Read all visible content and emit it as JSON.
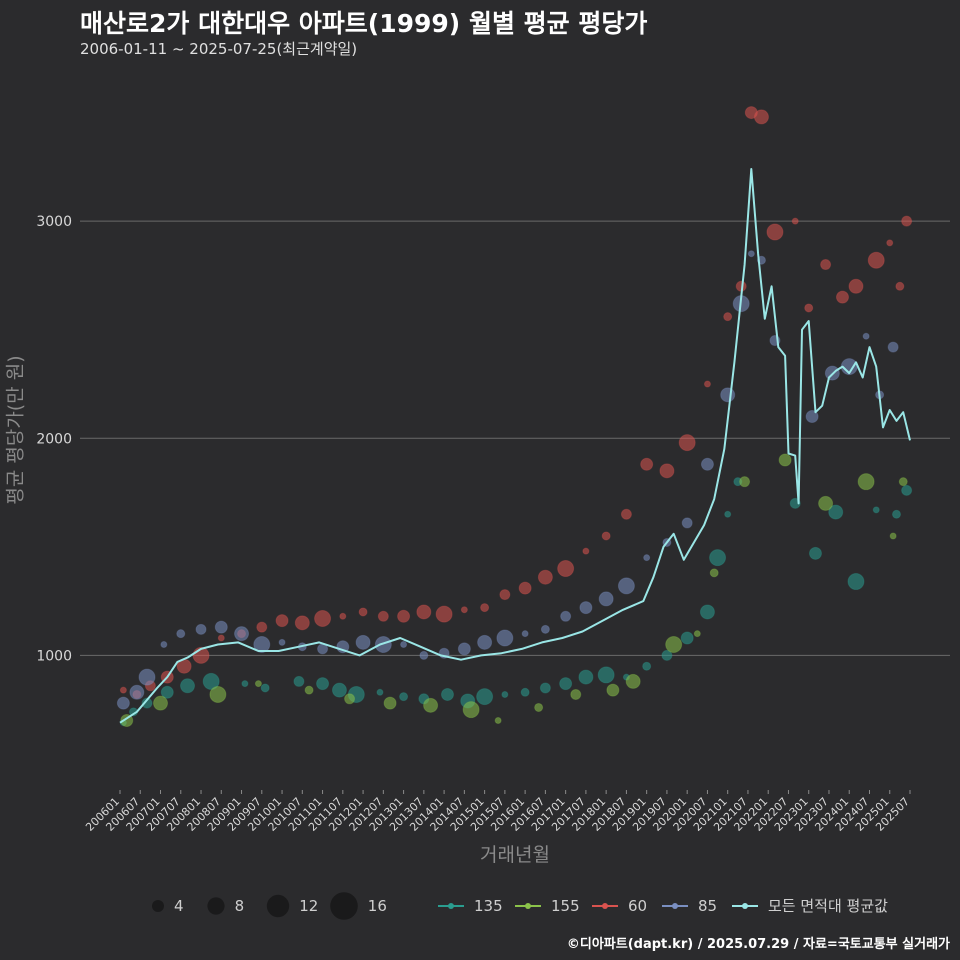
{
  "chart_data": {
    "type": "scatter",
    "title": "매산로2가 대한대우 아파트(1999) 월별 평균 평당가",
    "subtitle": "2006-01-11 ~ 2025-07-25(최근계약일)",
    "xlabel": "거래년월",
    "ylabel": "평균 평당가(만 원)",
    "caption": "©디아파트(dapt.kr) / 2025.07.29 / 자료=국토교통부 실거래가",
    "ylim": [
      380,
      3650
    ],
    "yticks": [
      1000,
      2000,
      3000
    ],
    "grid": true,
    "xticks": [
      "200601",
      "200607",
      "200701",
      "200707",
      "200801",
      "200807",
      "200901",
      "200907",
      "201001",
      "201007",
      "201101",
      "201107",
      "201201",
      "201207",
      "201301",
      "201307",
      "201401",
      "201407",
      "201501",
      "201507",
      "201601",
      "201607",
      "201701",
      "201707",
      "201801",
      "201807",
      "201901",
      "201907",
      "202001",
      "202007",
      "202101",
      "202107",
      "202201",
      "202207",
      "202301",
      "202307",
      "202401",
      "202407",
      "202501",
      "202507"
    ],
    "size_legend": [
      4,
      8,
      12,
      16
    ],
    "series": [
      {
        "name": "135",
        "color": "#2a9d8f",
        "points": [
          [
            "2006-02",
            690
          ],
          [
            "2006-05",
            740
          ],
          [
            "2006-09",
            780
          ],
          [
            "2007-03",
            830
          ],
          [
            "2007-09",
            860
          ],
          [
            "2008-04",
            880
          ],
          [
            "2009-02",
            870
          ],
          [
            "2009-08",
            850
          ],
          [
            "2010-06",
            880
          ],
          [
            "2011-01",
            870
          ],
          [
            "2011-06",
            840
          ],
          [
            "2011-11",
            820
          ],
          [
            "2012-06",
            830
          ],
          [
            "2013-01",
            810
          ],
          [
            "2013-07",
            800
          ],
          [
            "2014-02",
            820
          ],
          [
            "2014-08",
            790
          ],
          [
            "2015-01",
            810
          ],
          [
            "2015-07",
            820
          ],
          [
            "2016-01",
            830
          ],
          [
            "2016-07",
            850
          ],
          [
            "2017-01",
            870
          ],
          [
            "2017-07",
            900
          ],
          [
            "2018-01",
            910
          ],
          [
            "2018-07",
            900
          ],
          [
            "2019-01",
            950
          ],
          [
            "2019-07",
            1000
          ],
          [
            "2020-01",
            1080
          ],
          [
            "2020-07",
            1200
          ],
          [
            "2020-10",
            1450
          ],
          [
            "2021-01",
            1650
          ],
          [
            "2021-04",
            1800
          ],
          [
            "2022-09",
            1700
          ],
          [
            "2023-03",
            1470
          ],
          [
            "2023-09",
            1660
          ],
          [
            "2024-03",
            1340
          ],
          [
            "2024-09",
            1670
          ],
          [
            "2025-03",
            1650
          ],
          [
            "2025-06",
            1760
          ]
        ]
      },
      {
        "name": "155",
        "color": "#8bc34a",
        "points": [
          [
            "2006-03",
            700
          ],
          [
            "2007-01",
            780
          ],
          [
            "2008-06",
            820
          ],
          [
            "2009-06",
            870
          ],
          [
            "2010-09",
            840
          ],
          [
            "2011-09",
            800
          ],
          [
            "2012-09",
            780
          ],
          [
            "2013-09",
            770
          ],
          [
            "2014-09",
            750
          ],
          [
            "2015-05",
            700
          ],
          [
            "2016-05",
            760
          ],
          [
            "2017-04",
            820
          ],
          [
            "2018-03",
            840
          ],
          [
            "2018-09",
            880
          ],
          [
            "2019-09",
            1050
          ],
          [
            "2020-04",
            1100
          ],
          [
            "2020-09",
            1380
          ],
          [
            "2021-06",
            1800
          ],
          [
            "2022-06",
            1900
          ],
          [
            "2023-06",
            1700
          ],
          [
            "2024-06",
            1800
          ],
          [
            "2025-02",
            1550
          ],
          [
            "2025-05",
            1800
          ]
        ]
      },
      {
        "name": "60",
        "color": "#d9534f",
        "points": [
          [
            "2006-02",
            840
          ],
          [
            "2006-06",
            820
          ],
          [
            "2006-10",
            860
          ],
          [
            "2007-03",
            900
          ],
          [
            "2007-08",
            950
          ],
          [
            "2008-01",
            1000
          ],
          [
            "2008-07",
            1080
          ],
          [
            "2009-01",
            1100
          ],
          [
            "2009-07",
            1130
          ],
          [
            "2010-01",
            1160
          ],
          [
            "2010-07",
            1150
          ],
          [
            "2011-01",
            1170
          ],
          [
            "2011-07",
            1180
          ],
          [
            "2012-01",
            1200
          ],
          [
            "2012-07",
            1180
          ],
          [
            "2013-01",
            1180
          ],
          [
            "2013-07",
            1200
          ],
          [
            "2014-01",
            1190
          ],
          [
            "2014-07",
            1210
          ],
          [
            "2015-01",
            1220
          ],
          [
            "2015-07",
            1280
          ],
          [
            "2016-01",
            1310
          ],
          [
            "2016-07",
            1360
          ],
          [
            "2017-01",
            1400
          ],
          [
            "2017-07",
            1480
          ],
          [
            "2018-01",
            1550
          ],
          [
            "2018-07",
            1650
          ],
          [
            "2019-01",
            1880
          ],
          [
            "2019-07",
            1850
          ],
          [
            "2020-01",
            1980
          ],
          [
            "2020-07",
            2250
          ],
          [
            "2021-01",
            2560
          ],
          [
            "2021-05",
            2700
          ],
          [
            "2021-08",
            3500
          ],
          [
            "2021-11",
            3480
          ],
          [
            "2022-03",
            2950
          ],
          [
            "2022-09",
            3000
          ],
          [
            "2023-01",
            2600
          ],
          [
            "2023-06",
            2800
          ],
          [
            "2023-11",
            2650
          ],
          [
            "2024-03",
            2700
          ],
          [
            "2024-09",
            2820
          ],
          [
            "2025-01",
            2900
          ],
          [
            "2025-04",
            2700
          ],
          [
            "2025-06",
            3000
          ]
        ]
      },
      {
        "name": "85",
        "color": "#7a8fc1",
        "points": [
          [
            "2006-02",
            780
          ],
          [
            "2006-06",
            830
          ],
          [
            "2006-09",
            900
          ],
          [
            "2007-02",
            1050
          ],
          [
            "2007-07",
            1100
          ],
          [
            "2008-01",
            1120
          ],
          [
            "2008-07",
            1130
          ],
          [
            "2009-01",
            1100
          ],
          [
            "2009-07",
            1050
          ],
          [
            "2010-01",
            1060
          ],
          [
            "2010-07",
            1040
          ],
          [
            "2011-01",
            1030
          ],
          [
            "2011-07",
            1040
          ],
          [
            "2012-01",
            1060
          ],
          [
            "2012-07",
            1050
          ],
          [
            "2013-01",
            1050
          ],
          [
            "2013-07",
            1000
          ],
          [
            "2014-01",
            1010
          ],
          [
            "2014-07",
            1030
          ],
          [
            "2015-01",
            1060
          ],
          [
            "2015-07",
            1080
          ],
          [
            "2016-01",
            1100
          ],
          [
            "2016-07",
            1120
          ],
          [
            "2017-01",
            1180
          ],
          [
            "2017-07",
            1220
          ],
          [
            "2018-01",
            1260
          ],
          [
            "2018-07",
            1320
          ],
          [
            "2019-01",
            1450
          ],
          [
            "2019-07",
            1520
          ],
          [
            "2020-01",
            1610
          ],
          [
            "2020-07",
            1880
          ],
          [
            "2021-01",
            2200
          ],
          [
            "2021-05",
            2620
          ],
          [
            "2021-08",
            2850
          ],
          [
            "2021-11",
            2820
          ],
          [
            "2022-03",
            2450
          ],
          [
            "2023-02",
            2100
          ],
          [
            "2023-08",
            2300
          ],
          [
            "2024-01",
            2330
          ],
          [
            "2024-06",
            2470
          ],
          [
            "2024-10",
            2200
          ],
          [
            "2025-02",
            2420
          ]
        ]
      }
    ],
    "average": {
      "name": "모든 면적대 평균값",
      "color": "#9ae6e6",
      "points": [
        [
          "2006-01",
          690
        ],
        [
          "2006-06",
          740
        ],
        [
          "2006-12",
          850
        ],
        [
          "2007-03",
          900
        ],
        [
          "2007-06",
          970
        ],
        [
          "2007-09",
          990
        ],
        [
          "2008-01",
          1030
        ],
        [
          "2008-06",
          1050
        ],
        [
          "2008-12",
          1060
        ],
        [
          "2009-06",
          1020
        ],
        [
          "2009-12",
          1020
        ],
        [
          "2010-06",
          1040
        ],
        [
          "2010-12",
          1060
        ],
        [
          "2011-06",
          1030
        ],
        [
          "2011-12",
          1000
        ],
        [
          "2012-06",
          1050
        ],
        [
          "2012-12",
          1080
        ],
        [
          "2013-06",
          1040
        ],
        [
          "2013-12",
          1000
        ],
        [
          "2014-06",
          980
        ],
        [
          "2014-12",
          1000
        ],
        [
          "2015-06",
          1010
        ],
        [
          "2015-12",
          1030
        ],
        [
          "2016-06",
          1060
        ],
        [
          "2016-12",
          1080
        ],
        [
          "2017-06",
          1110
        ],
        [
          "2017-12",
          1160
        ],
        [
          "2018-06",
          1210
        ],
        [
          "2018-12",
          1250
        ],
        [
          "2019-03",
          1360
        ],
        [
          "2019-06",
          1500
        ],
        [
          "2019-09",
          1560
        ],
        [
          "2019-12",
          1440
        ],
        [
          "2020-03",
          1520
        ],
        [
          "2020-06",
          1600
        ],
        [
          "2020-09",
          1720
        ],
        [
          "2020-12",
          1950
        ],
        [
          "2021-03",
          2350
        ],
        [
          "2021-06",
          2800
        ],
        [
          "2021-08",
          3240
        ],
        [
          "2021-10",
          2850
        ],
        [
          "2021-12",
          2550
        ],
        [
          "2022-02",
          2700
        ],
        [
          "2022-04",
          2420
        ],
        [
          "2022-06",
          2380
        ],
        [
          "2022-07",
          1930
        ],
        [
          "2022-09",
          1920
        ],
        [
          "2022-10",
          1700
        ],
        [
          "2022-11",
          2500
        ],
        [
          "2023-01",
          2540
        ],
        [
          "2023-03",
          2120
        ],
        [
          "2023-05",
          2150
        ],
        [
          "2023-07",
          2280
        ],
        [
          "2023-09",
          2310
        ],
        [
          "2023-11",
          2330
        ],
        [
          "2024-01",
          2300
        ],
        [
          "2024-03",
          2350
        ],
        [
          "2024-05",
          2280
        ],
        [
          "2024-07",
          2420
        ],
        [
          "2024-09",
          2330
        ],
        [
          "2024-11",
          2050
        ],
        [
          "2025-01",
          2130
        ],
        [
          "2025-03",
          2080
        ],
        [
          "2025-05",
          2120
        ],
        [
          "2025-07",
          1990
        ]
      ]
    }
  }
}
